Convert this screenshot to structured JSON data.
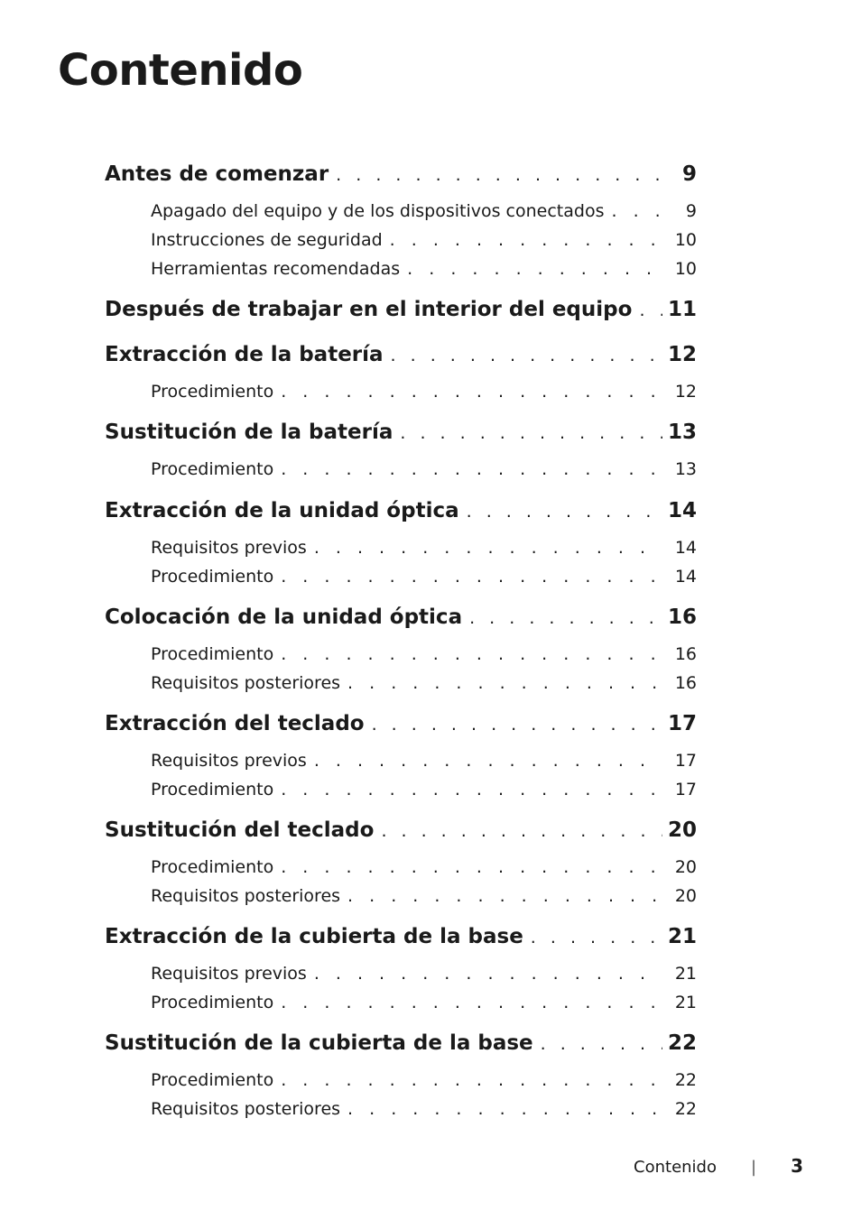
{
  "page_title": "Contenido",
  "toc": [
    {
      "title": "Antes de comenzar",
      "page": "9",
      "subs": [
        {
          "title": "Apagado del equipo y de los dispositivos conectados",
          "page": "9"
        },
        {
          "title": "Instrucciones de seguridad",
          "page": "10"
        },
        {
          "title": "Herramientas recomendadas",
          "page": "10"
        }
      ]
    },
    {
      "title": "Después de trabajar en el interior del equipo",
      "page": "11",
      "subs": []
    },
    {
      "title": "Extracción de la batería",
      "page": "12",
      "subs": [
        {
          "title": "Procedimiento",
          "page": "12"
        }
      ]
    },
    {
      "title": "Sustitución de la batería",
      "page": "13",
      "subs": [
        {
          "title": "Procedimiento",
          "page": "13"
        }
      ]
    },
    {
      "title": "Extracción de la unidad óptica",
      "page": "14",
      "subs": [
        {
          "title": "Requisitos previos",
          "page": "14"
        },
        {
          "title": "Procedimiento",
          "page": "14"
        }
      ]
    },
    {
      "title": "Colocación de la unidad óptica",
      "page": "16",
      "subs": [
        {
          "title": "Procedimiento",
          "page": "16"
        },
        {
          "title": "Requisitos posteriores",
          "page": "16"
        }
      ]
    },
    {
      "title": "Extracción del teclado",
      "page": "17",
      "subs": [
        {
          "title": "Requisitos previos",
          "page": "17"
        },
        {
          "title": "Procedimiento",
          "page": "17"
        }
      ]
    },
    {
      "title": "Sustitución del teclado",
      "page": "20",
      "subs": [
        {
          "title": "Procedimiento",
          "page": "20"
        },
        {
          "title": "Requisitos posteriores",
          "page": "20"
        }
      ]
    },
    {
      "title": "Extracción de la cubierta de la base",
      "page": "21",
      "subs": [
        {
          "title": "Requisitos previos",
          "page": "21"
        },
        {
          "title": "Procedimiento",
          "page": "21"
        }
      ]
    },
    {
      "title": "Sustitución de la cubierta de la base",
      "page": "22",
      "subs": [
        {
          "title": "Procedimiento",
          "page": "22"
        },
        {
          "title": "Requisitos posteriores",
          "page": "22"
        }
      ]
    }
  ],
  "footer": {
    "label": "Contenido",
    "separator": "|",
    "page_number": "3"
  }
}
